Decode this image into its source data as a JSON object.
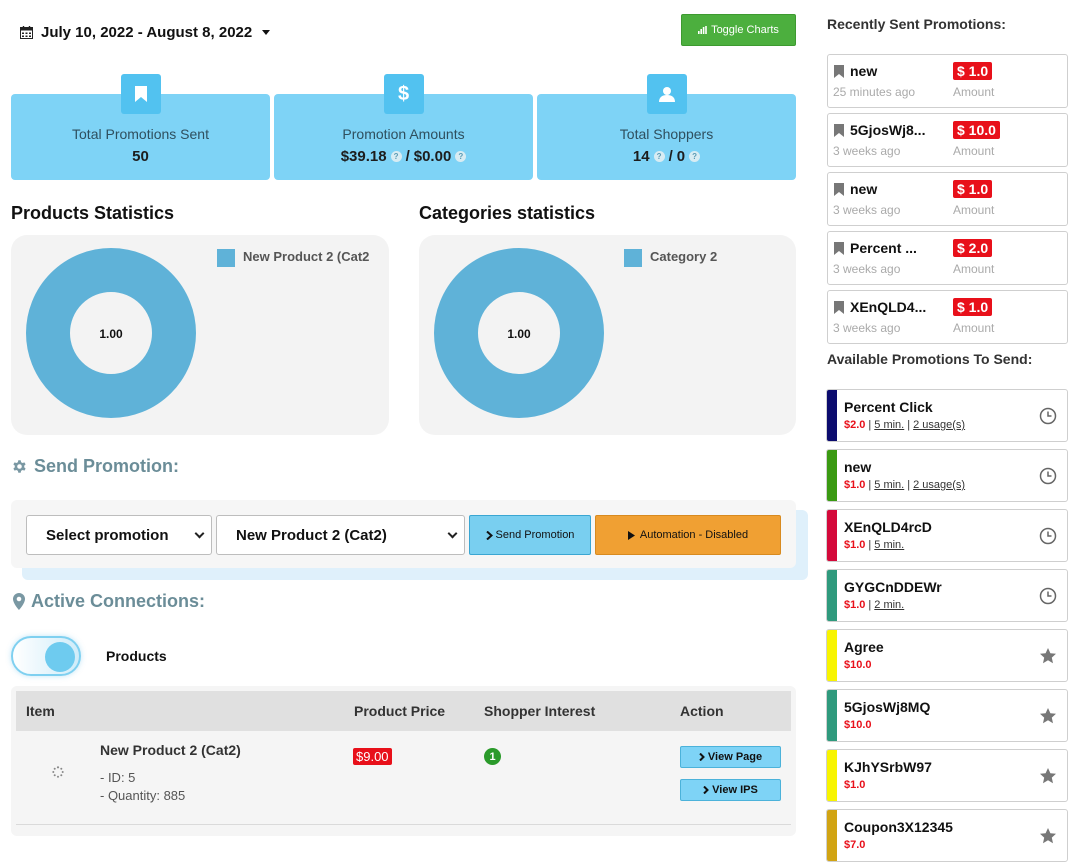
{
  "date_range": "July 10, 2022 - August 8, 2022",
  "toggle_charts_label": "Toggle Charts",
  "stats": [
    {
      "label": "Total Promotions Sent",
      "value": "50",
      "icon": "bookmark-icon"
    },
    {
      "label": "Promotion Amounts",
      "value_a": "$39.18",
      "value_b": "$0.00",
      "separator": "/",
      "icon": "dollar-icon"
    },
    {
      "label": "Total Shoppers",
      "value_a": "14",
      "value_b": "0",
      "separator": "/",
      "icon": "user-icon"
    }
  ],
  "products_statistics": {
    "title": "Products Statistics",
    "legend": "New Product 2 (Cat2",
    "center_label": "1.00"
  },
  "categories_statistics": {
    "title": "Categories statistics",
    "legend": "Category 2",
    "center_label": "1.00"
  },
  "chart_data": [
    {
      "type": "pie",
      "title": "Products Statistics",
      "labels": [
        "New Product 2 (Cat2"
      ],
      "values": [
        1.0
      ],
      "colors": [
        "#5fb2d8"
      ],
      "legend": "top-right"
    },
    {
      "type": "pie",
      "title": "Categories statistics",
      "labels": [
        "Category 2"
      ],
      "values": [
        1.0
      ],
      "colors": [
        "#5fb2d8"
      ],
      "legend": "top-right"
    }
  ],
  "send_promotion": {
    "title": "Send Promotion:",
    "promotion_select": "Select promotion",
    "product_select": "New Product 2 (Cat2)",
    "send_button": "Send Promotion",
    "automation_button": "Automation - Disabled"
  },
  "active_connections": {
    "title": "Active Connections:",
    "toggle_label": "Products",
    "headers": [
      "Item",
      "Product Price",
      "Shopper Interest",
      "Action"
    ],
    "rows": [
      {
        "name": "New Product 2 (Cat2)",
        "id": "- ID: 5",
        "quantity": "- Quantity: 885",
        "price": "$9.00",
        "interest": "1",
        "view_page": "View Page",
        "view_ips": "View IPS"
      }
    ]
  },
  "recent": {
    "title": "Recently Sent Promotions:",
    "amount_label": "Amount",
    "items": [
      {
        "name": "new",
        "time": "25 minutes ago",
        "amount": "$ 1.0"
      },
      {
        "name": "5GjosWj8...",
        "time": "3 weeks ago",
        "amount": "$ 10.0"
      },
      {
        "name": "new",
        "time": "3 weeks ago",
        "amount": "$ 1.0"
      },
      {
        "name": "Percent ...",
        "time": "3 weeks ago",
        "amount": "$ 2.0"
      },
      {
        "name": "XEnQLD4...",
        "time": "3 weeks ago",
        "amount": "$ 1.0"
      }
    ]
  },
  "available": {
    "title": "Available Promotions To Send:",
    "items": [
      {
        "name": "Percent Click",
        "price": "$2.0",
        "time": "5 min.",
        "usage": "2 usage(s)",
        "color": "#0b0b6e",
        "icon": "clock-icon"
      },
      {
        "name": "new",
        "price": "$1.0",
        "time": "5 min.",
        "usage": "2 usage(s)",
        "color": "#3a9a12",
        "icon": "clock-icon"
      },
      {
        "name": "XEnQLD4rcD",
        "price": "$1.0",
        "time": "5 min.",
        "color": "#d4093a",
        "icon": "clock-icon"
      },
      {
        "name": "GYGCnDDEWr",
        "price": "$1.0",
        "time": "2 min.",
        "color": "#2f9a7d",
        "icon": "clock-icon"
      },
      {
        "name": "Agree",
        "price": "$10.0",
        "color": "#f8f400",
        "icon": "star-icon"
      },
      {
        "name": "5GjosWj8MQ",
        "price": "$10.0",
        "color": "#2f9a7d",
        "icon": "star-icon"
      },
      {
        "name": "KJhYSrbW97",
        "price": "$1.0",
        "color": "#f8f400",
        "icon": "star-icon"
      },
      {
        "name": "Coupon3X12345",
        "price": "$7.0",
        "color": "#d1a413",
        "icon": "star-icon"
      }
    ]
  }
}
